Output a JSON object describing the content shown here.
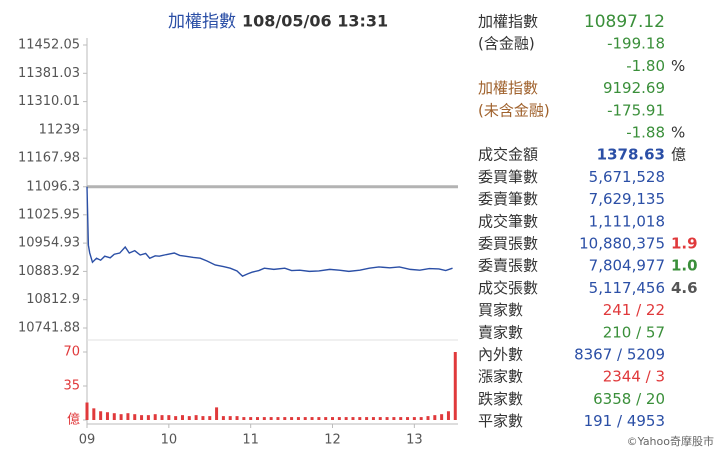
{
  "chart_data": [
    {
      "type": "line",
      "title": "加權指數",
      "subtitle": "108/05/06 13:31",
      "color": "#2b4fa6",
      "reference": 11096.3,
      "reference_color": "#b3b3b3",
      "ylim": [
        10741.88,
        11452.05
      ],
      "yticks": [
        10741.88,
        10812.9,
        10883.92,
        10954.93,
        11025.95,
        11096.3,
        11167.98,
        11239.0,
        11310.01,
        11381.03,
        11452.05
      ],
      "xlim": [
        0,
        272
      ],
      "x": [
        0,
        1,
        2,
        4,
        7,
        10,
        13,
        17,
        20,
        24,
        28,
        31,
        35,
        39,
        43,
        46,
        50,
        53,
        58,
        64,
        68,
        72,
        78,
        83,
        88,
        94,
        100,
        105,
        110,
        114,
        118,
        121,
        126,
        130,
        137,
        145,
        150,
        156,
        163,
        170,
        178,
        185,
        192,
        200,
        207,
        214,
        222,
        229,
        237,
        244,
        251,
        258,
        263,
        268
      ],
      "values": [
        11096.3,
        10950,
        10930,
        10907,
        10917,
        10912,
        10922,
        10918,
        10927,
        10930,
        10945,
        10930,
        10936,
        10925,
        10929,
        10917,
        10923,
        10922,
        10926,
        10930,
        10924,
        10922,
        10919,
        10917,
        10910,
        10900,
        10896,
        10892,
        10885,
        10872,
        10878,
        10882,
        10886,
        10892,
        10889,
        10892,
        10886,
        10887,
        10884,
        10885,
        10889,
        10887,
        10884,
        10887,
        10892,
        10895,
        10893,
        10895,
        10889,
        10887,
        10891,
        10890,
        10886,
        10892
      ]
    },
    {
      "type": "bar",
      "color": "#e0393b",
      "tick_color": "#e0393b",
      "ylim": [
        0,
        70
      ],
      "yticks": [
        {
          "value": 0,
          "label": "億"
        },
        35,
        70
      ],
      "xlim": [
        0,
        272
      ],
      "xticks": [
        {
          "value": 0,
          "label": "09"
        },
        {
          "value": 60,
          "label": "10"
        },
        {
          "value": 120,
          "label": "11"
        },
        {
          "value": 180,
          "label": "12"
        },
        {
          "value": 240,
          "label": "13"
        }
      ],
      "x": [
        0,
        5,
        10,
        15,
        20,
        25,
        30,
        35,
        40,
        45,
        50,
        55,
        60,
        65,
        70,
        75,
        80,
        85,
        90,
        95,
        100,
        105,
        110,
        115,
        120,
        125,
        130,
        135,
        140,
        145,
        150,
        155,
        160,
        165,
        170,
        175,
        180,
        185,
        190,
        195,
        200,
        205,
        210,
        215,
        220,
        225,
        230,
        235,
        240,
        245,
        250,
        255,
        260,
        265,
        270
      ],
      "values": [
        18,
        12,
        9,
        8,
        7,
        6,
        7,
        6,
        5,
        5,
        6,
        5,
        5,
        4,
        5,
        4,
        5,
        4,
        4,
        13,
        4,
        4,
        4,
        3,
        3,
        3,
        3,
        3,
        3,
        3,
        3,
        3,
        3,
        3,
        3,
        3,
        3,
        3,
        3,
        3,
        3,
        3,
        3,
        3,
        3,
        3,
        3,
        3,
        3,
        3,
        4,
        5,
        6,
        9,
        70
      ]
    }
  ],
  "quote_panel": {
    "rows": [
      {
        "label": "加權指數",
        "value": "10897.12",
        "value_color": "#3a8f3a",
        "big": true
      },
      {
        "label": "(含金融)",
        "value": "-199.18",
        "value_color": "#3a8f3a"
      },
      {
        "value": "-1.80",
        "value_color": "#3a8f3a",
        "extra": "%"
      },
      {
        "label": "加權指數",
        "label_color": "#a0622d",
        "value": "9192.69",
        "value_color": "#3a8f3a"
      },
      {
        "label": "(未含金融)",
        "label_color": "#a0622d",
        "value": "-175.91",
        "value_color": "#3a8f3a"
      },
      {
        "value": "-1.88",
        "value_color": "#3a8f3a",
        "extra": "%"
      },
      {
        "label": "成交金額",
        "value": "1378.63",
        "value_color": "#2b4fa6",
        "bold": true,
        "extra": "億"
      },
      {
        "label": "委買筆數",
        "value": "5,671,528",
        "value_color": "#2b4fa6"
      },
      {
        "label": "委賣筆數",
        "value": "7,629,135",
        "value_color": "#2b4fa6"
      },
      {
        "label": "成交筆數",
        "value": "1,111,018",
        "value_color": "#2b4fa6"
      },
      {
        "label": "委買張數",
        "value": "10,880,375",
        "value_color": "#2b4fa6",
        "extra": "1.9",
        "extra_color": "#e0393b"
      },
      {
        "label": "委賣張數",
        "value": "7,804,977",
        "value_color": "#2b4fa6",
        "extra": "1.0",
        "extra_color": "#3a8f3a"
      },
      {
        "label": "成交張數",
        "value": "5,117,456",
        "value_color": "#2b4fa6",
        "extra": "4.6",
        "extra_color": "#555555"
      },
      {
        "label": "買家數",
        "value": "241 / 22",
        "value_color": "#e0393b"
      },
      {
        "label": "賣家數",
        "value": "210 / 57",
        "value_color": "#3a8f3a"
      },
      {
        "label": "內外數",
        "value": "8367 / 5209",
        "value_color": "#2b4fa6"
      },
      {
        "label": "漲家數",
        "value": "2344 / 3",
        "value_color": "#e0393b"
      },
      {
        "label": "跌家數",
        "value": "6358 / 20",
        "value_color": "#3a8f3a"
      },
      {
        "label": "平家數",
        "value": "191 / 4953",
        "value_color": "#2b4fa6"
      }
    ],
    "footer": "©Yahoo奇摩股市"
  }
}
